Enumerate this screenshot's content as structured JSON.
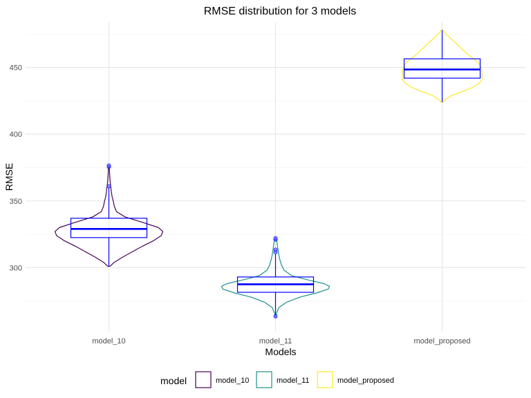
{
  "chart_data": {
    "type": "violin",
    "title": "RMSE distribution for 3 models",
    "xlabel": "Models",
    "ylabel": "RMSE",
    "ylim": [
      252,
      484
    ],
    "yticks": [
      300,
      350,
      400,
      450
    ],
    "categories": [
      "model_10",
      "model_11",
      "model_proposed"
    ],
    "legend": {
      "title": "model",
      "position": "bottom",
      "entries": [
        "model_10",
        "model_11",
        "model_proposed"
      ]
    },
    "grid": true,
    "box_color": "#0000ff",
    "outlier_color": "#6b6bff",
    "series": [
      {
        "category": "model_10",
        "color": "#440154",
        "min": 301,
        "max": 376,
        "box": {
          "lower_whisker": 301,
          "q1": 322.5,
          "median": 329,
          "q3": 337,
          "upper_whisker": 360
        },
        "outliers": [
          361,
          375.5,
          376.5
        ],
        "density": [
          [
            301,
            0.02
          ],
          [
            304,
            0.1
          ],
          [
            308,
            0.26
          ],
          [
            312,
            0.44
          ],
          [
            316,
            0.62
          ],
          [
            320,
            0.82
          ],
          [
            324,
            0.97
          ],
          [
            327,
            1.0
          ],
          [
            330,
            0.92
          ],
          [
            334,
            0.62
          ],
          [
            338,
            0.3
          ],
          [
            342,
            0.14
          ],
          [
            346,
            0.1
          ],
          [
            350,
            0.08
          ],
          [
            353,
            0.06
          ],
          [
            357,
            0.045
          ],
          [
            362,
            0.03
          ],
          [
            366,
            0.02
          ],
          [
            370,
            0.014
          ],
          [
            374,
            0.01
          ],
          [
            376,
            0.004
          ]
        ]
      },
      {
        "category": "model_11",
        "color": "#21908c",
        "min": 263,
        "max": 322,
        "box": {
          "lower_whisker": 264,
          "q1": 281.5,
          "median": 287.5,
          "q3": 293,
          "upper_whisker": 310
        },
        "outliers": [
          263.5,
          311.5,
          313.5,
          321,
          322
        ],
        "density": [
          [
            263,
            0.01
          ],
          [
            266,
            0.02
          ],
          [
            270,
            0.06
          ],
          [
            274,
            0.2
          ],
          [
            278,
            0.46
          ],
          [
            281,
            0.76
          ],
          [
            284,
            0.98
          ],
          [
            286,
            1.0
          ],
          [
            288,
            0.9
          ],
          [
            291,
            0.58
          ],
          [
            294,
            0.3
          ],
          [
            298,
            0.16
          ],
          [
            302,
            0.11
          ],
          [
            306,
            0.08
          ],
          [
            310,
            0.06
          ],
          [
            314,
            0.045
          ],
          [
            318,
            0.03
          ],
          [
            321,
            0.02
          ],
          [
            322,
            0.01
          ]
        ]
      },
      {
        "category": "model_proposed",
        "color": "#fde725",
        "min": 424,
        "max": 478,
        "box": {
          "lower_whisker": 424,
          "q1": 442,
          "median": 448.5,
          "q3": 456.5,
          "upper_whisker": 478
        },
        "outliers": [],
        "density": [
          [
            424,
            0.02
          ],
          [
            426,
            0.06
          ],
          [
            429,
            0.18
          ],
          [
            432,
            0.38
          ],
          [
            435,
            0.56
          ],
          [
            438,
            0.68
          ],
          [
            441,
            0.74
          ],
          [
            444,
            0.74
          ],
          [
            447,
            0.74
          ],
          [
            450,
            0.72
          ],
          [
            453,
            0.68
          ],
          [
            456,
            0.6
          ],
          [
            459,
            0.5
          ],
          [
            462,
            0.42
          ],
          [
            465,
            0.34
          ],
          [
            468,
            0.26
          ],
          [
            471,
            0.18
          ],
          [
            474,
            0.1
          ],
          [
            476,
            0.05
          ],
          [
            478,
            0.02
          ]
        ]
      }
    ]
  }
}
